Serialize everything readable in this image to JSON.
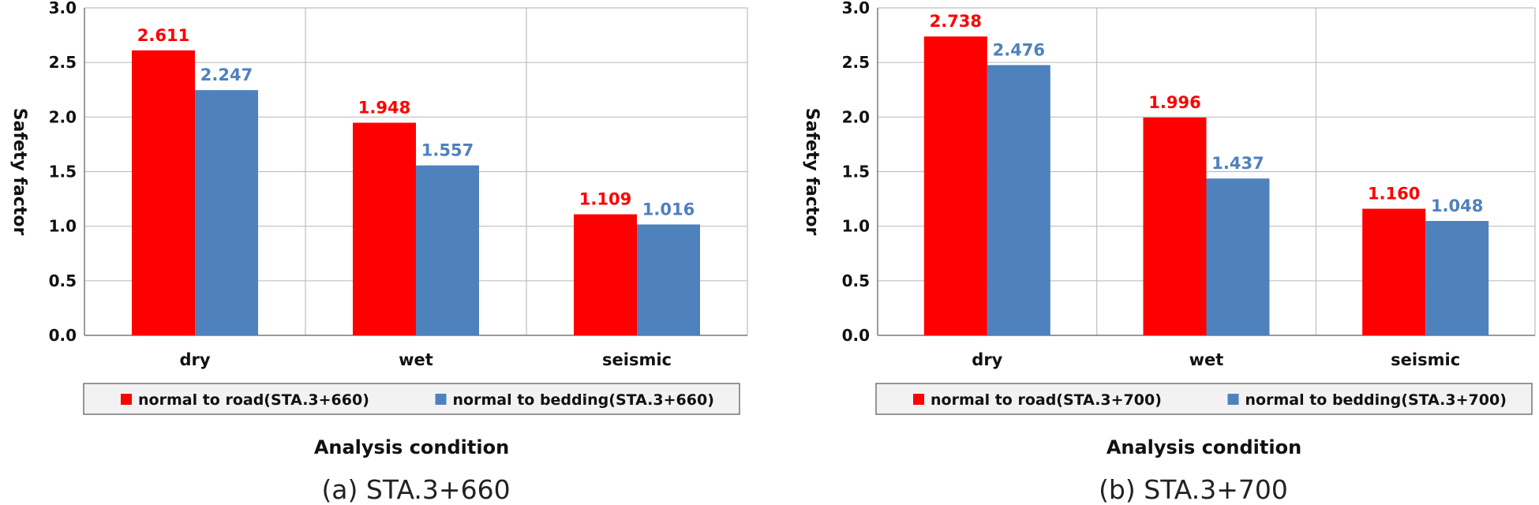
{
  "chart_data": [
    {
      "type": "bar",
      "caption": "(a) STA.3+660",
      "xlabel": "Analysis condition",
      "ylabel": "Safety factor",
      "categories": [
        "dry",
        "wet",
        "seismic"
      ],
      "ylim": [
        0,
        3.0
      ],
      "yticks": [
        "0.0",
        "0.5",
        "1.0",
        "1.5",
        "2.0",
        "2.5",
        "3.0"
      ],
      "grid": true,
      "legend_position": "bottom",
      "series": [
        {
          "name": "normal to road(STA.3+660)",
          "color": "#ff0000",
          "values": [
            2.611,
            1.948,
            1.109
          ],
          "labels": [
            "2.611",
            "1.948",
            "1.109"
          ]
        },
        {
          "name": "normal to bedding(STA.3+660)",
          "color": "#4f81bd",
          "values": [
            2.247,
            1.557,
            1.016
          ],
          "labels": [
            "2.247",
            "1.557",
            "1.016"
          ]
        }
      ]
    },
    {
      "type": "bar",
      "caption": "(b) STA.3+700",
      "xlabel": "Analysis condition",
      "ylabel": "Safety factor",
      "categories": [
        "dry",
        "wet",
        "seismic"
      ],
      "ylim": [
        0,
        3.0
      ],
      "yticks": [
        "0.0",
        "0.5",
        "1.0",
        "1.5",
        "2.0",
        "2.5",
        "3.0"
      ],
      "grid": true,
      "legend_position": "bottom",
      "series": [
        {
          "name": "normal to road(STA.3+700)",
          "color": "#ff0000",
          "values": [
            2.738,
            1.996,
            1.16
          ],
          "labels": [
            "2.738",
            "1.996",
            "1.160"
          ]
        },
        {
          "name": "normal to bedding(STA.3+700)",
          "color": "#4f81bd",
          "values": [
            2.476,
            1.437,
            1.048
          ],
          "labels": [
            "2.476",
            "1.437",
            "1.048"
          ]
        }
      ]
    }
  ]
}
